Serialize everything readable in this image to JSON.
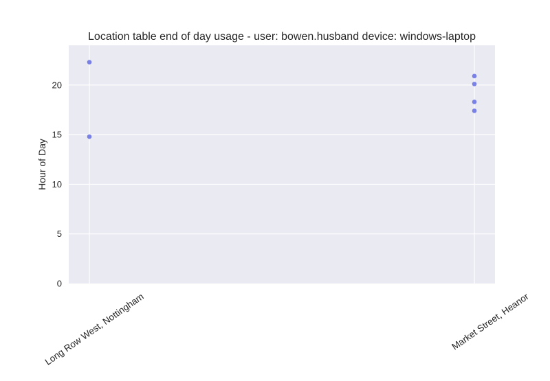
{
  "chart_data": {
    "type": "scatter",
    "title": "Location table end of day usage -  user: bowen.husband device: windows-laptop",
    "xlabel": "",
    "ylabel": "Hour of Day",
    "categories": [
      "Long Row West, Nottingham",
      "Market Street, Heanor"
    ],
    "ylim": [
      0,
      24
    ],
    "yticks": [
      0,
      5,
      10,
      15,
      20
    ],
    "grid": true,
    "legend": "none",
    "series": [
      {
        "points": [
          {
            "category": "Long Row West, Nottingham",
            "y": 22.3
          },
          {
            "category": "Long Row West, Nottingham",
            "y": 14.8
          },
          {
            "category": "Market Street, Heanor",
            "y": 20.9
          },
          {
            "category": "Market Street, Heanor",
            "y": 20.1
          },
          {
            "category": "Market Street, Heanor",
            "y": 18.3
          },
          {
            "category": "Market Street, Heanor",
            "y": 17.4
          }
        ],
        "color": "#6b74e6"
      }
    ],
    "colors": {
      "plot_background": "#eaeaf2",
      "grid": "#ffffff",
      "text": "#262626"
    }
  }
}
